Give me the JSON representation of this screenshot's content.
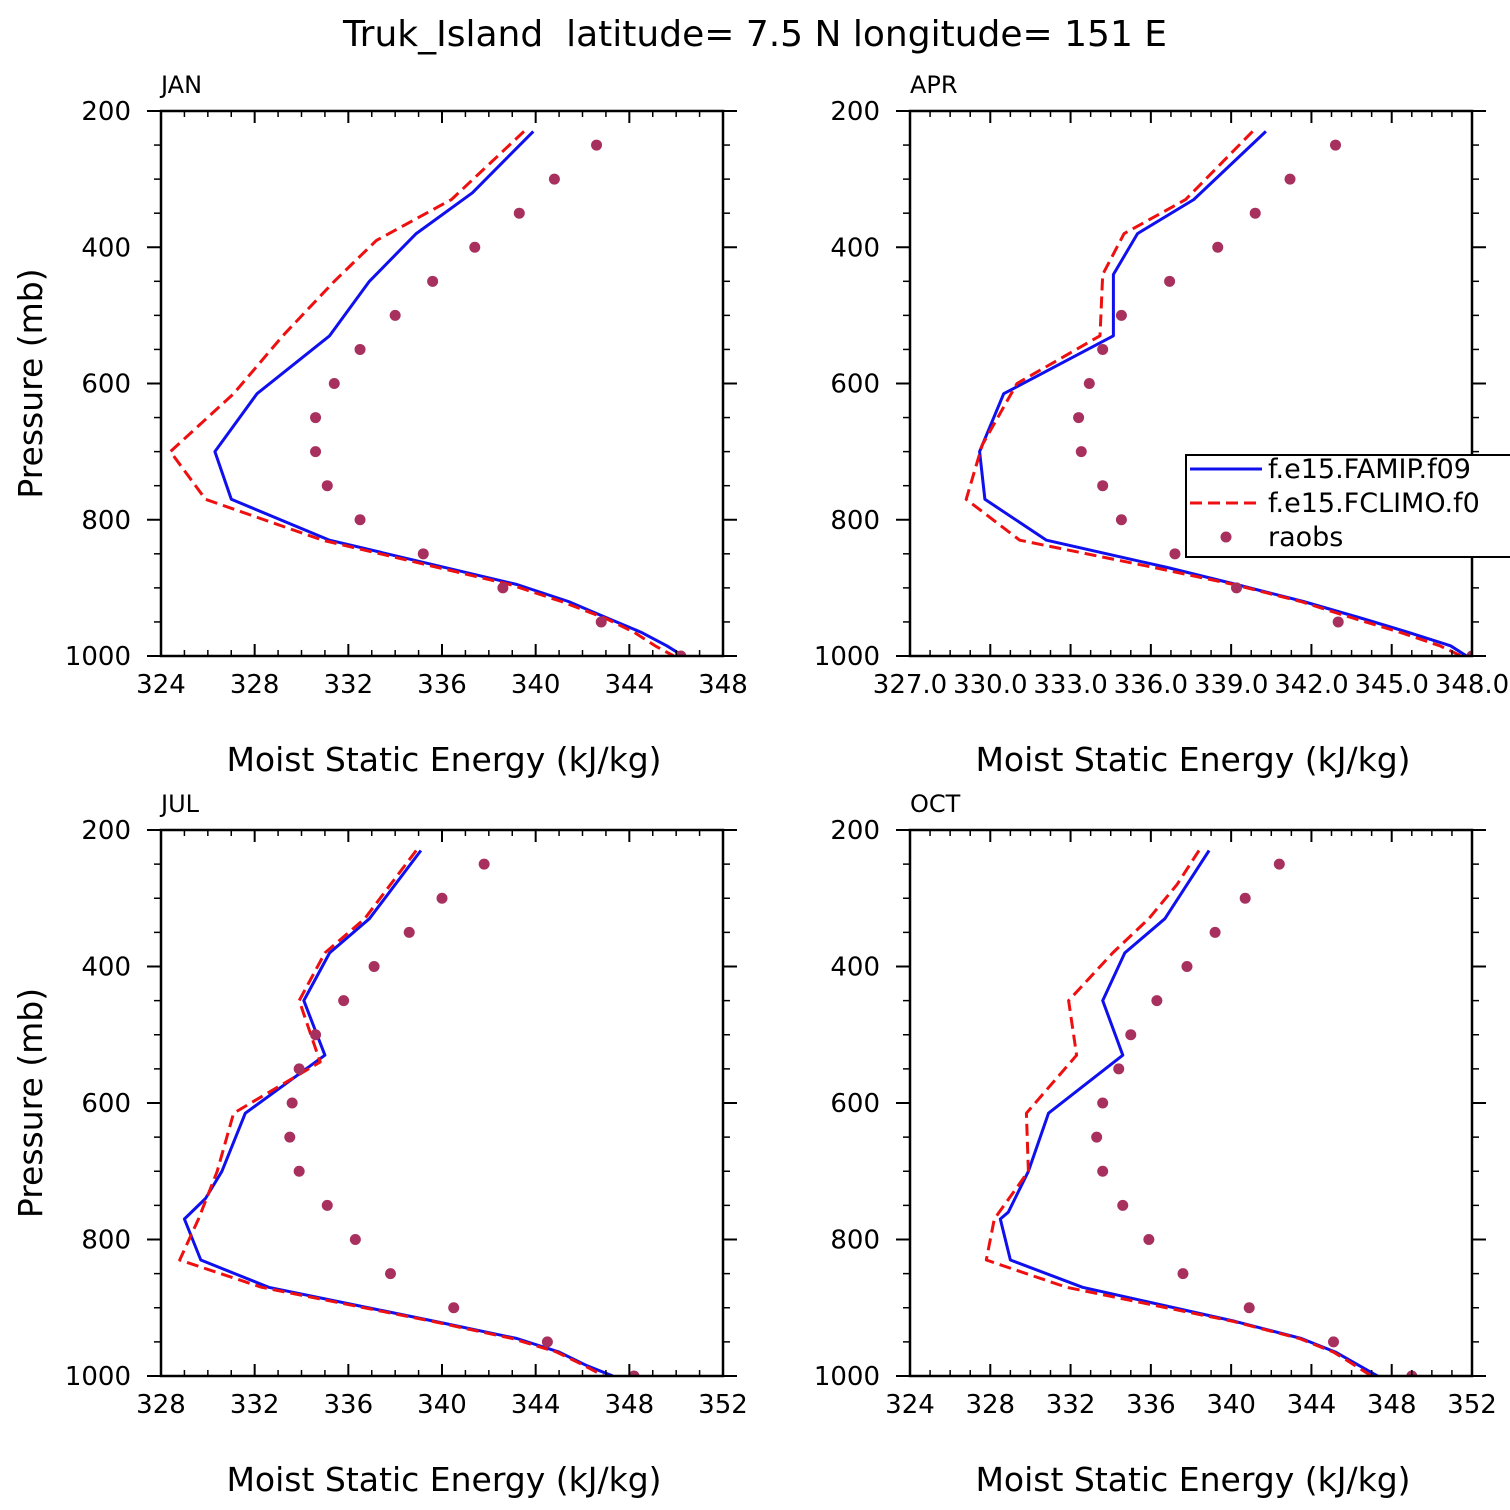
{
  "title": "Truk_Island  latitude= 7.5 N longitude= 151 E",
  "colors": {
    "model1": "#1010ee",
    "model2": "#ee1010",
    "obs": "#a8305e",
    "axis": "#000000"
  },
  "legend": {
    "location": "APR panel, right edge (clipped)",
    "entries": [
      {
        "label": "f.e15.FAMIP.f09",
        "style": "solid",
        "color": "#1010ee"
      },
      {
        "label": "f.e15.FCLIMO.f0",
        "style": "dashed",
        "color": "#ee1010"
      },
      {
        "label": "raobs",
        "style": "dot",
        "color": "#a8305e"
      }
    ]
  },
  "chart_data": [
    {
      "type": "line",
      "title": "JAN",
      "xlabel": "Moist Static Energy (kJ/kg)",
      "ylabel": "Pressure (mb)",
      "xlim": [
        324,
        348
      ],
      "xticks": [
        324,
        328,
        332,
        336,
        340,
        344,
        348
      ],
      "xtick_labels": [
        "324",
        "328",
        "332",
        "336",
        "340",
        "344",
        "348"
      ],
      "ylim": [
        1000,
        200
      ],
      "yticks": [
        200,
        400,
        600,
        800,
        1000
      ],
      "ytick_labels": [
        "200",
        "400",
        "600",
        "800",
        "1000"
      ],
      "series": [
        {
          "key": "famip",
          "style": "solid",
          "points": [
            [
              339.9,
              230
            ],
            [
              337.3,
              320
            ],
            [
              334.9,
              380
            ],
            [
              332.9,
              450
            ],
            [
              331.2,
              530
            ],
            [
              328.1,
              615
            ],
            [
              326.3,
              700
            ],
            [
              327.0,
              770
            ],
            [
              331.2,
              830
            ],
            [
              339.2,
              895
            ],
            [
              341.4,
              920
            ],
            [
              343.1,
              945
            ],
            [
              344.5,
              965
            ],
            [
              345.6,
              985
            ],
            [
              346.3,
              1000
            ]
          ]
        },
        {
          "key": "fclimo",
          "style": "dashed",
          "points": [
            [
              339.5,
              230
            ],
            [
              336.4,
              330
            ],
            [
              333.2,
              390
            ],
            [
              331.4,
              450
            ],
            [
              329.2,
              530
            ],
            [
              327.1,
              615
            ],
            [
              324.4,
              700
            ],
            [
              325.9,
              770
            ],
            [
              330.9,
              830
            ],
            [
              338.9,
              895
            ],
            [
              341.1,
              920
            ],
            [
              343.0,
              945
            ],
            [
              344.2,
              965
            ],
            [
              345.1,
              985
            ],
            [
              345.9,
              1000
            ]
          ]
        },
        {
          "key": "raobs",
          "style": "dots",
          "points": [
            [
              342.6,
              250
            ],
            [
              340.8,
              300
            ],
            [
              339.3,
              350
            ],
            [
              337.4,
              400
            ],
            [
              335.6,
              450
            ],
            [
              334.0,
              500
            ],
            [
              332.5,
              550
            ],
            [
              331.4,
              600
            ],
            [
              330.6,
              650
            ],
            [
              330.6,
              700
            ],
            [
              331.1,
              750
            ],
            [
              332.5,
              800
            ],
            [
              335.2,
              850
            ],
            [
              338.6,
              900
            ],
            [
              342.8,
              950
            ],
            [
              346.2,
              1000
            ]
          ]
        }
      ]
    },
    {
      "type": "line",
      "title": "APR",
      "xlabel": "Moist Static Energy (kJ/kg)",
      "ylabel": "",
      "xlim": [
        327,
        348
      ],
      "xticks": [
        327,
        330,
        333,
        336,
        339,
        342,
        345,
        348
      ],
      "xtick_labels": [
        "327.0",
        "330.0",
        "333.0",
        "336.0",
        "339.0",
        "342.0",
        "345.0",
        "348.0"
      ],
      "ylim": [
        1000,
        200
      ],
      "yticks": [
        200,
        400,
        600,
        800,
        1000
      ],
      "ytick_labels": [
        "200",
        "400",
        "600",
        "800",
        "1000"
      ],
      "series": [
        {
          "key": "famip",
          "style": "solid",
          "points": [
            [
              340.3,
              230
            ],
            [
              337.6,
              330
            ],
            [
              335.5,
              380
            ],
            [
              334.6,
              440
            ],
            [
              334.6,
              530
            ],
            [
              330.5,
              615
            ],
            [
              329.6,
              700
            ],
            [
              329.8,
              770
            ],
            [
              332.1,
              830
            ],
            [
              336.6,
              870
            ],
            [
              339.2,
              895
            ],
            [
              341.7,
              920
            ],
            [
              343.9,
              945
            ],
            [
              345.6,
              965
            ],
            [
              347.2,
              985
            ],
            [
              347.8,
              1000
            ]
          ]
        },
        {
          "key": "fclimo",
          "style": "dashed",
          "points": [
            [
              339.8,
              230
            ],
            [
              337.3,
              330
            ],
            [
              335.0,
              380
            ],
            [
              334.2,
              440
            ],
            [
              334.1,
              530
            ],
            [
              331.0,
              600
            ],
            [
              329.7,
              690
            ],
            [
              329.1,
              770
            ],
            [
              331.1,
              830
            ],
            [
              336.1,
              870
            ],
            [
              339.1,
              895
            ],
            [
              341.6,
              920
            ],
            [
              343.6,
              945
            ],
            [
              345.3,
              965
            ],
            [
              346.8,
              985
            ],
            [
              347.6,
              1000
            ]
          ]
        },
        {
          "key": "raobs",
          "style": "dots",
          "points": [
            [
              342.9,
              250
            ],
            [
              341.2,
              300
            ],
            [
              339.9,
              350
            ],
            [
              338.5,
              400
            ],
            [
              336.7,
              450
            ],
            [
              334.9,
              500
            ],
            [
              334.2,
              550
            ],
            [
              333.7,
              600
            ],
            [
              333.3,
              650
            ],
            [
              333.4,
              700
            ],
            [
              334.2,
              750
            ],
            [
              334.9,
              800
            ],
            [
              336.9,
              850
            ],
            [
              339.2,
              900
            ],
            [
              343.0,
              950
            ],
            [
              348.0,
              1000
            ]
          ]
        }
      ]
    },
    {
      "type": "line",
      "title": "JUL",
      "xlabel": "Moist Static Energy (kJ/kg)",
      "ylabel": "Pressure (mb)",
      "xlim": [
        328,
        352
      ],
      "xticks": [
        328,
        332,
        336,
        340,
        344,
        348,
        352
      ],
      "xtick_labels": [
        "328",
        "332",
        "336",
        "340",
        "344",
        "348",
        "352"
      ],
      "ylim": [
        1000,
        200
      ],
      "yticks": [
        200,
        400,
        600,
        800,
        1000
      ],
      "ytick_labels": [
        "200",
        "400",
        "600",
        "800",
        "1000"
      ],
      "series": [
        {
          "key": "famip",
          "style": "solid",
          "points": [
            [
              339.1,
              230
            ],
            [
              336.9,
              330
            ],
            [
              335.2,
              380
            ],
            [
              334.1,
              450
            ],
            [
              335.0,
              530
            ],
            [
              331.6,
              615
            ],
            [
              330.6,
              700
            ],
            [
              329.9,
              740
            ],
            [
              329.0,
              770
            ],
            [
              329.7,
              830
            ],
            [
              332.6,
              870
            ],
            [
              339.7,
              920
            ],
            [
              343.2,
              945
            ],
            [
              345.0,
              965
            ],
            [
              346.2,
              985
            ],
            [
              347.3,
              1000
            ]
          ]
        },
        {
          "key": "fclimo",
          "style": "dashed",
          "points": [
            [
              338.9,
              230
            ],
            [
              336.7,
              330
            ],
            [
              335.0,
              380
            ],
            [
              333.9,
              450
            ],
            [
              334.8,
              540
            ],
            [
              331.1,
              615
            ],
            [
              330.4,
              700
            ],
            [
              329.6,
              770
            ],
            [
              328.8,
              830
            ],
            [
              332.3,
              870
            ],
            [
              339.6,
              920
            ],
            [
              343.0,
              945
            ],
            [
              344.9,
              965
            ],
            [
              346.1,
              985
            ],
            [
              346.9,
              1000
            ]
          ]
        },
        {
          "key": "raobs",
          "style": "dots",
          "points": [
            [
              341.8,
              250
            ],
            [
              340.0,
              300
            ],
            [
              338.6,
              350
            ],
            [
              337.1,
              400
            ],
            [
              335.8,
              450
            ],
            [
              334.6,
              500
            ],
            [
              333.9,
              550
            ],
            [
              333.6,
              600
            ],
            [
              333.5,
              650
            ],
            [
              333.9,
              700
            ],
            [
              335.1,
              750
            ],
            [
              336.3,
              800
            ],
            [
              337.8,
              850
            ],
            [
              340.5,
              900
            ],
            [
              344.5,
              950
            ],
            [
              348.2,
              1000
            ]
          ]
        }
      ]
    },
    {
      "type": "line",
      "title": "OCT",
      "xlabel": "Moist Static Energy (kJ/kg)",
      "ylabel": "",
      "xlim": [
        324,
        352
      ],
      "xticks": [
        324,
        328,
        332,
        336,
        340,
        344,
        348,
        352
      ],
      "xtick_labels": [
        "324",
        "328",
        "332",
        "336",
        "340",
        "344",
        "348",
        "352"
      ],
      "ylim": [
        1000,
        200
      ],
      "yticks": [
        200,
        400,
        600,
        800,
        1000
      ],
      "ytick_labels": [
        "200",
        "400",
        "600",
        "800",
        "1000"
      ],
      "series": [
        {
          "key": "famip",
          "style": "solid",
          "points": [
            [
              338.9,
              230
            ],
            [
              336.7,
              330
            ],
            [
              334.7,
              380
            ],
            [
              333.6,
              450
            ],
            [
              334.6,
              530
            ],
            [
              330.9,
              615
            ],
            [
              329.9,
              700
            ],
            [
              328.9,
              760
            ],
            [
              328.5,
              770
            ],
            [
              329.0,
              830
            ],
            [
              332.6,
              870
            ],
            [
              340.2,
              920
            ],
            [
              343.5,
              945
            ],
            [
              345.2,
              965
            ],
            [
              346.4,
              985
            ],
            [
              347.3,
              1000
            ]
          ]
        },
        {
          "key": "fclimo",
          "style": "dashed",
          "points": [
            [
              338.4,
              230
            ],
            [
              337.3,
              280
            ],
            [
              335.9,
              330
            ],
            [
              334.1,
              380
            ],
            [
              331.9,
              450
            ],
            [
              332.3,
              530
            ],
            [
              329.8,
              615
            ],
            [
              329.9,
              700
            ],
            [
              328.2,
              770
            ],
            [
              327.8,
              830
            ],
            [
              331.8,
              870
            ],
            [
              340.1,
              920
            ],
            [
              343.4,
              945
            ],
            [
              345.1,
              965
            ],
            [
              346.2,
              985
            ],
            [
              347.0,
              1000
            ]
          ]
        },
        {
          "key": "raobs",
          "style": "dots",
          "points": [
            [
              342.4,
              250
            ],
            [
              340.7,
              300
            ],
            [
              339.2,
              350
            ],
            [
              337.8,
              400
            ],
            [
              336.3,
              450
            ],
            [
              335.0,
              500
            ],
            [
              334.4,
              550
            ],
            [
              333.6,
              600
            ],
            [
              333.3,
              650
            ],
            [
              333.6,
              700
            ],
            [
              334.6,
              750
            ],
            [
              335.9,
              800
            ],
            [
              337.6,
              850
            ],
            [
              340.9,
              900
            ],
            [
              345.1,
              950
            ],
            [
              349.0,
              1000
            ]
          ]
        }
      ]
    }
  ]
}
